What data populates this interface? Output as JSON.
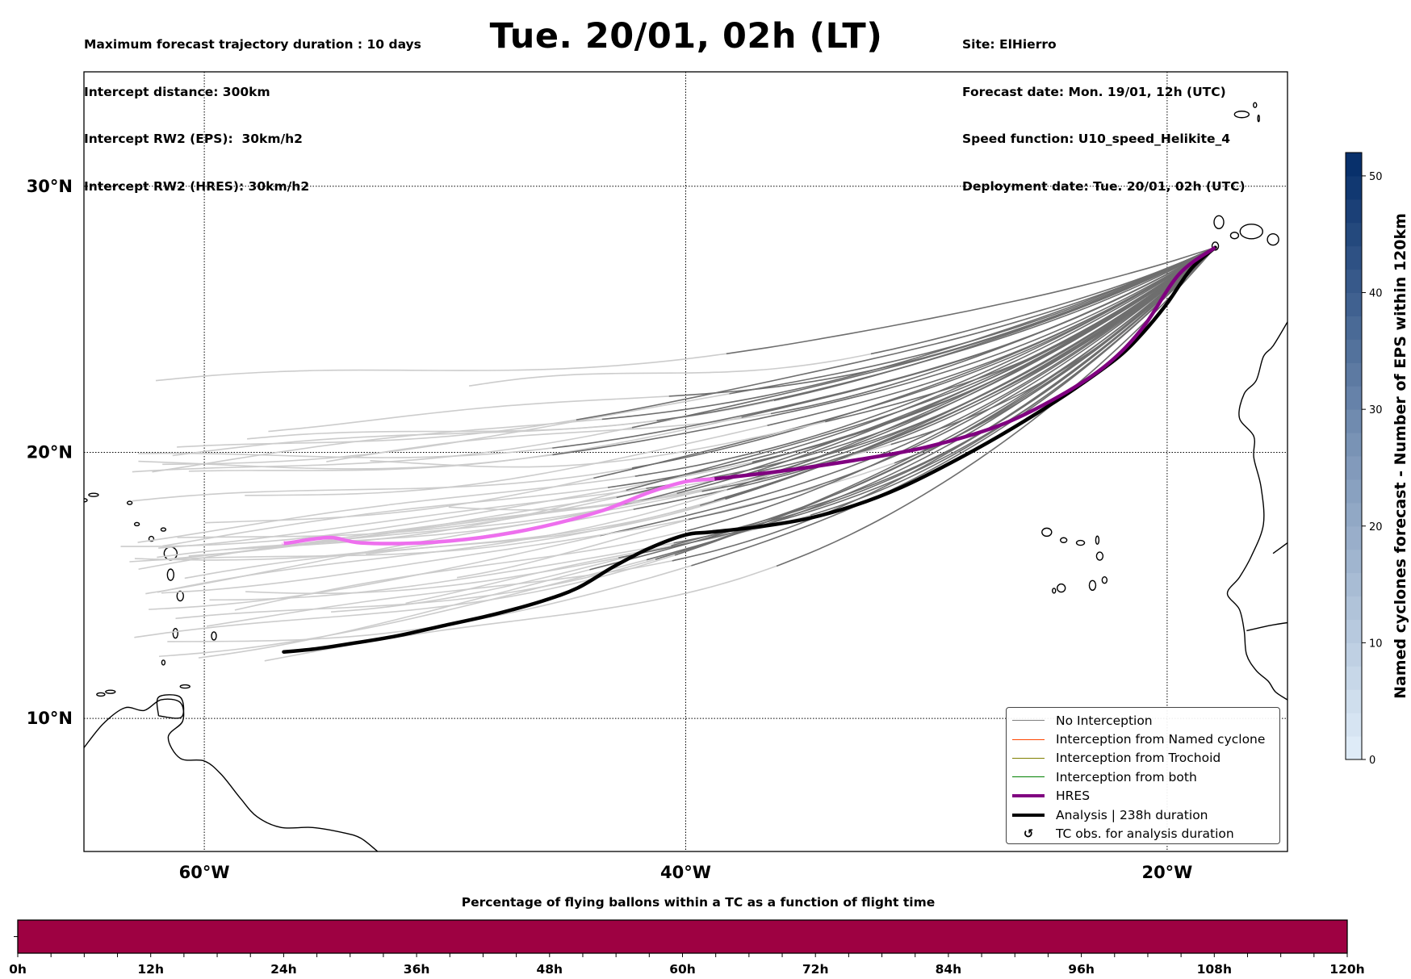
{
  "header": {
    "title": "Tue. 20/01, 02h (LT)",
    "info_left": [
      "Maximum forecast trajectory duration : 10 days",
      "Intercept distance: 300km",
      "Intercept RW2 (EPS):  30km/h2",
      "Intercept RW2 (HRES): 30km/h2"
    ],
    "info_right": [
      "Site: ElHierro",
      "Forecast date: Mon. 19/01, 12h (UTC)",
      "Speed function: U10_speed_Helikite_4",
      "Deployment date: Tue. 20/01, 02h (UTC)"
    ]
  },
  "map": {
    "extent": {
      "lon_min": -65,
      "lon_max": -15,
      "lat_min": 5,
      "lat_max": 34.3
    },
    "lat_ticks": [
      {
        "value": 30,
        "label": "30°N"
      },
      {
        "value": 20,
        "label": "20°N"
      },
      {
        "value": 10,
        "label": "10°N"
      }
    ],
    "lon_ticks": [
      {
        "value": -60,
        "label": "60°W"
      },
      {
        "value": -40,
        "label": "40°W"
      },
      {
        "value": -20,
        "label": "20°W"
      }
    ],
    "gridlines": true,
    "launch_site": {
      "name": "ElHierro",
      "lon": -18.0,
      "lat": 27.7
    },
    "colors": {
      "ens_recent": "#6e6e6e",
      "ens_old": "#cccccc",
      "hres_recent": "#800080",
      "hres_old": "#ee6fee",
      "analysis": "#000000",
      "coast": "#000000"
    },
    "hres_track": [
      [
        -18.0,
        27.7
      ],
      [
        -19.5,
        26.7
      ],
      [
        -21.0,
        24.7
      ],
      [
        -22.5,
        23.3
      ],
      [
        -24.5,
        22.1
      ],
      [
        -27.0,
        21.0
      ],
      [
        -30.0,
        20.2
      ],
      [
        -33.0,
        19.7
      ],
      [
        -36.0,
        19.3
      ],
      [
        -38.8,
        19.0
      ],
      [
        -40.0,
        18.9
      ],
      [
        -41.5,
        18.5
      ],
      [
        -43.5,
        17.8
      ],
      [
        -46.0,
        17.2
      ],
      [
        -48.5,
        16.8
      ],
      [
        -51.0,
        16.6
      ],
      [
        -53.5,
        16.6
      ],
      [
        -54.8,
        16.8
      ],
      [
        -56.5,
        16.6
      ],
      [
        -56.7,
        16.6
      ]
    ],
    "hres_recent_until_index": 9,
    "analysis_track": [
      [
        -18.0,
        27.7
      ],
      [
        -19.0,
        26.9
      ],
      [
        -20.0,
        25.6
      ],
      [
        -21.0,
        24.5
      ],
      [
        -22.0,
        23.6
      ],
      [
        -23.5,
        22.6
      ],
      [
        -25.0,
        21.7
      ],
      [
        -27.0,
        20.6
      ],
      [
        -29.0,
        19.6
      ],
      [
        -31.0,
        18.7
      ],
      [
        -33.0,
        18.0
      ],
      [
        -35.0,
        17.5
      ],
      [
        -37.0,
        17.2
      ],
      [
        -39.0,
        17.0
      ],
      [
        -40.0,
        16.9
      ],
      [
        -41.5,
        16.4
      ],
      [
        -43.0,
        15.7
      ],
      [
        -44.5,
        14.9
      ],
      [
        -46.0,
        14.4
      ],
      [
        -48.0,
        13.9
      ],
      [
        -50.0,
        13.5
      ],
      [
        -52.0,
        13.1
      ],
      [
        -54.0,
        12.8
      ],
      [
        -55.5,
        12.6
      ],
      [
        -56.7,
        12.5
      ]
    ],
    "ensemble_count": 50
  },
  "legend": {
    "items": [
      {
        "label": "No Interception",
        "color": "#808080",
        "kind": "thin"
      },
      {
        "label": "Interception from Named cyclone",
        "color": "#ff4500",
        "kind": "thin"
      },
      {
        "label": "Interception from Trochoid",
        "color": "#808000",
        "kind": "thin"
      },
      {
        "label": "Interception from both",
        "color": "#008000",
        "kind": "thin"
      },
      {
        "label": "HRES",
        "color": "#800080",
        "kind": "thick"
      },
      {
        "label": "Analysis | 238h duration",
        "color": "#000000",
        "kind": "thick"
      },
      {
        "label": "TC obs. for analysis duration",
        "color": "#000000",
        "kind": "glyph",
        "glyph": "↺"
      }
    ]
  },
  "colorbar": {
    "label": "Named cyclones forecast - Number of EPS within 120km",
    "min": 0,
    "max": 52,
    "ticks": [
      0,
      10,
      20,
      30,
      40,
      50
    ],
    "colormap": "Blues",
    "color_low": "#deebf7",
    "color_high": "#08306b"
  },
  "chart_data": {
    "type": "bar",
    "title": "Percentage of flying ballons within a TC as a function of flight time",
    "xlabel": "",
    "ylabel": "",
    "x_range_hours": [
      0,
      120
    ],
    "tick_labels": [
      "0h",
      "12h",
      "24h",
      "36h",
      "48h",
      "60h",
      "72h",
      "84h",
      "96h",
      "108h",
      "120h"
    ],
    "tick_values": [
      0,
      12,
      24,
      36,
      48,
      60,
      72,
      84,
      96,
      108,
      120
    ],
    "minor_tick_step_hours": 3,
    "series": [
      {
        "name": "Percentage within TC",
        "from_hour": 0,
        "to_hour": 120,
        "color": "#9e0142"
      }
    ]
  }
}
